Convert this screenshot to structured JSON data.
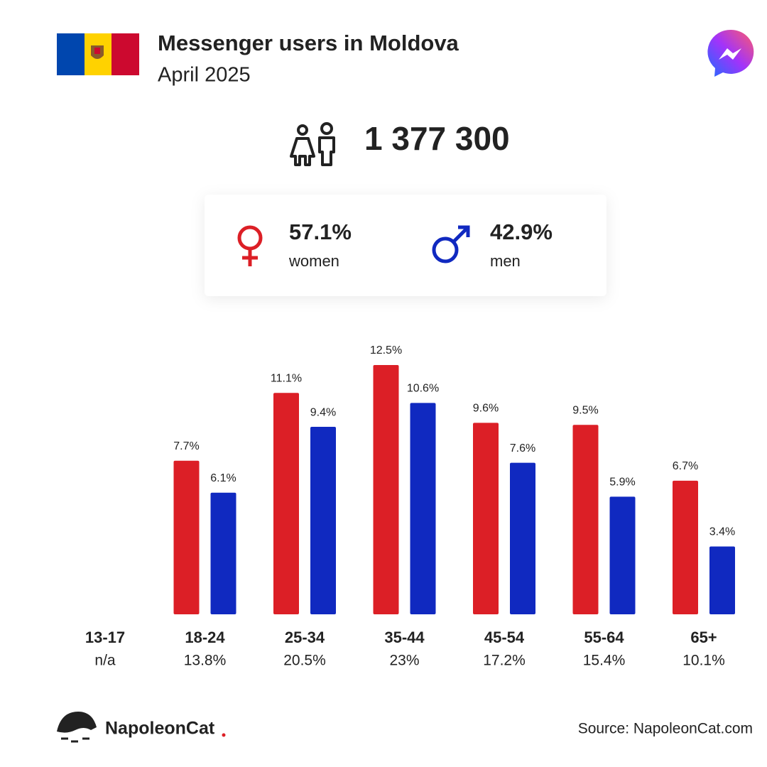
{
  "header": {
    "title": "Messenger users in Moldova",
    "subtitle": "April 2025"
  },
  "total": "1 377 300",
  "gender": {
    "women": {
      "share": "57.1%",
      "label": "women"
    },
    "men": {
      "share": "42.9%",
      "label": "men"
    }
  },
  "chart_data": {
    "type": "bar",
    "categories": [
      "13-17",
      "18-24",
      "25-34",
      "35-44",
      "45-54",
      "55-64",
      "65+"
    ],
    "category_totals": [
      "n/a",
      "13.8%",
      "20.5%",
      "23%",
      "17.2%",
      "15.4%",
      "10.1%"
    ],
    "series": [
      {
        "color": "#dc1f26",
        "values": [
          null,
          7.7,
          11.1,
          12.5,
          9.6,
          9.5,
          6.7
        ],
        "value_labels": [
          null,
          "7.7%",
          "11.1%",
          "12.5%",
          "9.6%",
          "9.5%",
          "6.7%"
        ]
      },
      {
        "color": "#1029c0",
        "values": [
          null,
          6.1,
          9.4,
          10.6,
          7.6,
          5.9,
          3.4
        ],
        "value_labels": [
          null,
          "6.1%",
          "9.4%",
          "10.6%",
          "7.6%",
          "5.9%",
          "3.4%"
        ]
      }
    ],
    "ylim": [
      0,
      12.5
    ]
  },
  "footer": {
    "brand": "NapoleonCat",
    "source": "Source: NapoleonCat.com"
  }
}
